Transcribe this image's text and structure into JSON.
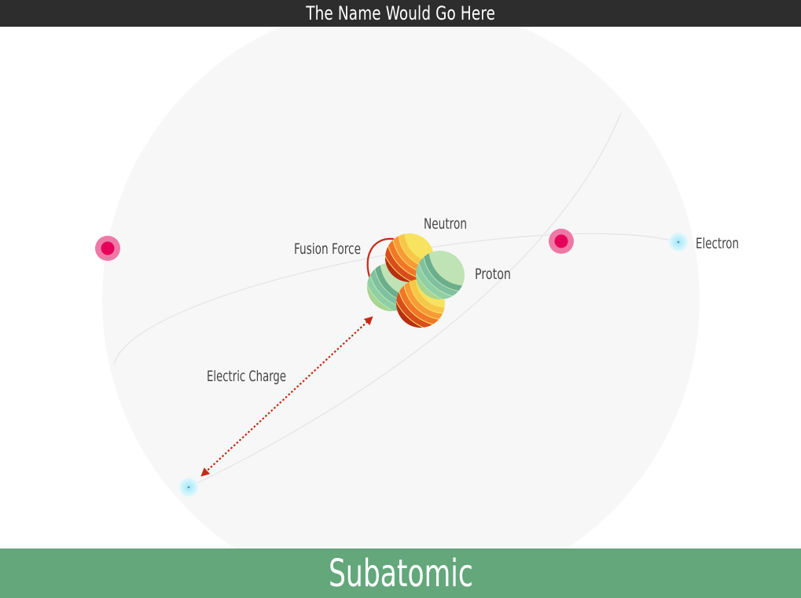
{
  "header": {
    "title": "The Name Would Go Here"
  },
  "footer": {
    "title": "Subatomic"
  },
  "diagram": {
    "labels": {
      "neutron": "Neutron",
      "proton": "Proton",
      "fusion_force": "Fusion Force",
      "electron": "Electron",
      "electric_charge": "Electric Charge"
    },
    "colors": {
      "header_bg": "#2d2d2d",
      "footer_bg": "#63a77b",
      "sphere_bg": "#f7f7f7",
      "particle_pink": "#e5005a",
      "electron_cyan": "#bfeff9",
      "force_red": "#c62a17"
    }
  }
}
